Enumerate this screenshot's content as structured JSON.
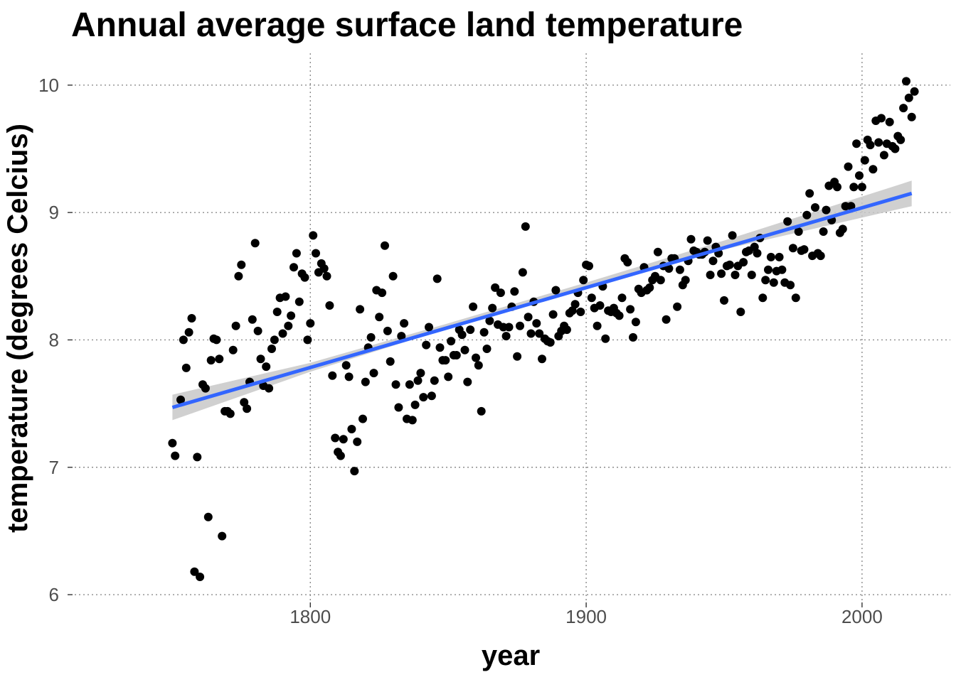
{
  "chart_data": {
    "type": "scatter",
    "title": "Annual average surface land temperature",
    "xlabel": "year",
    "ylabel": "temperature (degrees Celcius)",
    "xlim": [
      1712,
      2032
    ],
    "ylim": [
      5.9,
      10.25
    ],
    "x_ticks": [
      1800,
      1900,
      2000
    ],
    "x_tick_labels": [
      "1800",
      "1900",
      "2000"
    ],
    "y_ticks": [
      6,
      7,
      8,
      9,
      10
    ],
    "y_tick_labels": [
      "6",
      "7",
      "8",
      "9",
      "10"
    ],
    "grid": true,
    "point_color": "#000000",
    "trend": {
      "method": "linear",
      "color": "#3366ff",
      "band_color": "#c8c8c8",
      "points": [
        [
          1750,
          7.47
        ],
        [
          2018,
          9.15
        ]
      ],
      "band": [
        [
          1750,
          7.37,
          7.57
        ],
        [
          1800,
          7.75,
          7.82
        ],
        [
          1850,
          8.09,
          8.13
        ],
        [
          1900,
          8.41,
          8.45
        ],
        [
          1950,
          8.71,
          8.78
        ],
        [
          2018,
          9.05,
          9.25
        ]
      ]
    },
    "points": [
      [
        1750,
        7.19
      ],
      [
        1751,
        7.09
      ],
      [
        1753,
        7.53
      ],
      [
        1754,
        8.0
      ],
      [
        1755,
        7.78
      ],
      [
        1756,
        8.06
      ],
      [
        1757,
        8.17
      ],
      [
        1758,
        6.18
      ],
      [
        1759,
        7.08
      ],
      [
        1760,
        6.14
      ],
      [
        1761,
        7.65
      ],
      [
        1762,
        7.62
      ],
      [
        1763,
        6.61
      ],
      [
        1764,
        7.84
      ],
      [
        1765,
        8.01
      ],
      [
        1766,
        8.0
      ],
      [
        1767,
        7.85
      ],
      [
        1768,
        6.46
      ],
      [
        1769,
        7.44
      ],
      [
        1770,
        7.44
      ],
      [
        1771,
        7.42
      ],
      [
        1772,
        7.92
      ],
      [
        1773,
        8.11
      ],
      [
        1774,
        8.5
      ],
      [
        1775,
        8.59
      ],
      [
        1776,
        7.51
      ],
      [
        1777,
        7.46
      ],
      [
        1778,
        7.67
      ],
      [
        1779,
        8.16
      ],
      [
        1780,
        8.76
      ],
      [
        1781,
        8.07
      ],
      [
        1782,
        7.85
      ],
      [
        1783,
        7.64
      ],
      [
        1784,
        7.79
      ],
      [
        1785,
        7.62
      ],
      [
        1786,
        7.93
      ],
      [
        1787,
        8.0
      ],
      [
        1788,
        8.22
      ],
      [
        1789,
        8.33
      ],
      [
        1790,
        8.05
      ],
      [
        1791,
        8.34
      ],
      [
        1792,
        8.11
      ],
      [
        1793,
        8.19
      ],
      [
        1794,
        8.57
      ],
      [
        1795,
        8.68
      ],
      [
        1796,
        8.3
      ],
      [
        1797,
        8.52
      ],
      [
        1798,
        8.49
      ],
      [
        1799,
        8.0
      ],
      [
        1800,
        8.13
      ],
      [
        1801,
        8.82
      ],
      [
        1802,
        8.68
      ],
      [
        1803,
        8.53
      ],
      [
        1804,
        8.6
      ],
      [
        1805,
        8.56
      ],
      [
        1806,
        8.5
      ],
      [
        1807,
        8.27
      ],
      [
        1808,
        7.72
      ],
      [
        1809,
        7.23
      ],
      [
        1810,
        7.12
      ],
      [
        1811,
        7.09
      ],
      [
        1812,
        7.22
      ],
      [
        1813,
        7.8
      ],
      [
        1814,
        7.71
      ],
      [
        1815,
        7.3
      ],
      [
        1816,
        6.97
      ],
      [
        1817,
        7.2
      ],
      [
        1818,
        8.24
      ],
      [
        1819,
        7.38
      ],
      [
        1820,
        7.67
      ],
      [
        1821,
        7.94
      ],
      [
        1822,
        8.02
      ],
      [
        1823,
        7.74
      ],
      [
        1824,
        8.39
      ],
      [
        1825,
        8.18
      ],
      [
        1826,
        8.37
      ],
      [
        1827,
        8.74
      ],
      [
        1828,
        8.07
      ],
      [
        1829,
        7.83
      ],
      [
        1830,
        8.5
      ],
      [
        1831,
        7.65
      ],
      [
        1832,
        7.47
      ],
      [
        1833,
        8.03
      ],
      [
        1834,
        8.13
      ],
      [
        1835,
        7.38
      ],
      [
        1836,
        7.65
      ],
      [
        1837,
        7.37
      ],
      [
        1838,
        7.49
      ],
      [
        1839,
        7.68
      ],
      [
        1840,
        7.74
      ],
      [
        1841,
        7.55
      ],
      [
        1842,
        7.96
      ],
      [
        1843,
        8.1
      ],
      [
        1844,
        7.56
      ],
      [
        1845,
        7.68
      ],
      [
        1846,
        8.48
      ],
      [
        1847,
        7.94
      ],
      [
        1848,
        7.84
      ],
      [
        1849,
        7.84
      ],
      [
        1850,
        7.71
      ],
      [
        1851,
        7.99
      ],
      [
        1852,
        7.88
      ],
      [
        1853,
        7.88
      ],
      [
        1854,
        8.08
      ],
      [
        1855,
        8.04
      ],
      [
        1856,
        7.92
      ],
      [
        1857,
        7.67
      ],
      [
        1858,
        8.08
      ],
      [
        1859,
        8.26
      ],
      [
        1860,
        7.86
      ],
      [
        1861,
        7.8
      ],
      [
        1862,
        7.44
      ],
      [
        1863,
        8.06
      ],
      [
        1864,
        7.93
      ],
      [
        1865,
        8.15
      ],
      [
        1866,
        8.25
      ],
      [
        1867,
        8.41
      ],
      [
        1868,
        8.12
      ],
      [
        1869,
        8.37
      ],
      [
        1870,
        8.1
      ],
      [
        1871,
        8.03
      ],
      [
        1872,
        8.1
      ],
      [
        1873,
        8.26
      ],
      [
        1874,
        8.38
      ],
      [
        1875,
        7.87
      ],
      [
        1876,
        8.11
      ],
      [
        1877,
        8.53
      ],
      [
        1878,
        8.89
      ],
      [
        1879,
        8.18
      ],
      [
        1880,
        8.05
      ],
      [
        1881,
        8.3
      ],
      [
        1882,
        8.13
      ],
      [
        1883,
        8.05
      ],
      [
        1884,
        7.85
      ],
      [
        1885,
        8.01
      ],
      [
        1886,
        7.99
      ],
      [
        1887,
        7.98
      ],
      [
        1888,
        8.2
      ],
      [
        1889,
        8.39
      ],
      [
        1890,
        8.03
      ],
      [
        1891,
        8.07
      ],
      [
        1892,
        8.11
      ],
      [
        1893,
        8.08
      ],
      [
        1894,
        8.21
      ],
      [
        1895,
        8.23
      ],
      [
        1896,
        8.28
      ],
      [
        1897,
        8.37
      ],
      [
        1898,
        8.22
      ],
      [
        1899,
        8.47
      ],
      [
        1900,
        8.59
      ],
      [
        1901,
        8.58
      ],
      [
        1902,
        8.33
      ],
      [
        1903,
        8.25
      ],
      [
        1904,
        8.11
      ],
      [
        1905,
        8.27
      ],
      [
        1906,
        8.42
      ],
      [
        1907,
        8.01
      ],
      [
        1908,
        8.23
      ],
      [
        1909,
        8.22
      ],
      [
        1910,
        8.25
      ],
      [
        1911,
        8.21
      ],
      [
        1912,
        8.19
      ],
      [
        1913,
        8.33
      ],
      [
        1914,
        8.64
      ],
      [
        1915,
        8.61
      ],
      [
        1916,
        8.24
      ],
      [
        1917,
        8.02
      ],
      [
        1918,
        8.14
      ],
      [
        1919,
        8.4
      ],
      [
        1920,
        8.37
      ],
      [
        1921,
        8.57
      ],
      [
        1922,
        8.39
      ],
      [
        1923,
        8.41
      ],
      [
        1924,
        8.47
      ],
      [
        1925,
        8.5
      ],
      [
        1926,
        8.69
      ],
      [
        1927,
        8.47
      ],
      [
        1928,
        8.58
      ],
      [
        1929,
        8.16
      ],
      [
        1930,
        8.56
      ],
      [
        1931,
        8.64
      ],
      [
        1932,
        8.64
      ],
      [
        1933,
        8.26
      ],
      [
        1934,
        8.55
      ],
      [
        1935,
        8.43
      ],
      [
        1936,
        8.47
      ],
      [
        1937,
        8.62
      ],
      [
        1938,
        8.79
      ],
      [
        1939,
        8.7
      ],
      [
        1940,
        8.69
      ],
      [
        1941,
        8.67
      ],
      [
        1942,
        8.67
      ],
      [
        1943,
        8.69
      ],
      [
        1944,
        8.78
      ],
      [
        1945,
        8.51
      ],
      [
        1946,
        8.62
      ],
      [
        1947,
        8.73
      ],
      [
        1948,
        8.68
      ],
      [
        1949,
        8.52
      ],
      [
        1950,
        8.31
      ],
      [
        1951,
        8.58
      ],
      [
        1952,
        8.59
      ],
      [
        1953,
        8.82
      ],
      [
        1954,
        8.51
      ],
      [
        1955,
        8.58
      ],
      [
        1956,
        8.22
      ],
      [
        1957,
        8.61
      ],
      [
        1958,
        8.69
      ],
      [
        1959,
        8.7
      ],
      [
        1960,
        8.51
      ],
      [
        1961,
        8.73
      ],
      [
        1962,
        8.68
      ],
      [
        1963,
        8.8
      ],
      [
        1964,
        8.33
      ],
      [
        1965,
        8.47
      ],
      [
        1966,
        8.55
      ],
      [
        1967,
        8.65
      ],
      [
        1968,
        8.45
      ],
      [
        1969,
        8.54
      ],
      [
        1970,
        8.65
      ],
      [
        1971,
        8.55
      ],
      [
        1972,
        8.45
      ],
      [
        1973,
        8.93
      ],
      [
        1974,
        8.43
      ],
      [
        1975,
        8.72
      ],
      [
        1976,
        8.33
      ],
      [
        1977,
        8.85
      ],
      [
        1978,
        8.7
      ],
      [
        1979,
        8.71
      ],
      [
        1980,
        8.98
      ],
      [
        1981,
        9.15
      ],
      [
        1982,
        8.66
      ],
      [
        1983,
        9.04
      ],
      [
        1984,
        8.68
      ],
      [
        1985,
        8.66
      ],
      [
        1986,
        8.85
      ],
      [
        1987,
        9.02
      ],
      [
        1988,
        9.21
      ],
      [
        1989,
        8.94
      ],
      [
        1990,
        9.24
      ],
      [
        1991,
        9.2
      ],
      [
        1992,
        8.84
      ],
      [
        1993,
        8.87
      ],
      [
        1994,
        9.05
      ],
      [
        1995,
        9.36
      ],
      [
        1996,
        9.05
      ],
      [
        1997,
        9.2
      ],
      [
        1998,
        9.54
      ],
      [
        1999,
        9.29
      ],
      [
        2000,
        9.2
      ],
      [
        2001,
        9.41
      ],
      [
        2002,
        9.57
      ],
      [
        2003,
        9.53
      ],
      [
        2004,
        9.34
      ],
      [
        2005,
        9.72
      ],
      [
        2006,
        9.55
      ],
      [
        2007,
        9.74
      ],
      [
        2008,
        9.45
      ],
      [
        2009,
        9.54
      ],
      [
        2010,
        9.71
      ],
      [
        2011,
        9.52
      ],
      [
        2012,
        9.5
      ],
      [
        2013,
        9.6
      ],
      [
        2014,
        9.57
      ],
      [
        2015,
        9.82
      ],
      [
        2016,
        10.03
      ],
      [
        2017,
        9.9
      ],
      [
        2018,
        9.75
      ],
      [
        2019,
        9.95
      ]
    ]
  }
}
